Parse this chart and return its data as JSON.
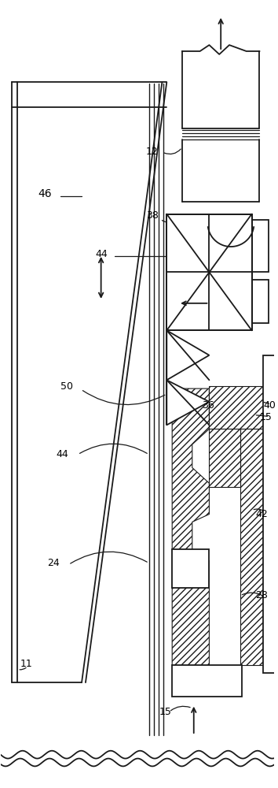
{
  "figsize": [
    3.54,
    10.0
  ],
  "dpi": 100,
  "bg_color": "#ffffff",
  "line_color": "#1a1a1a"
}
